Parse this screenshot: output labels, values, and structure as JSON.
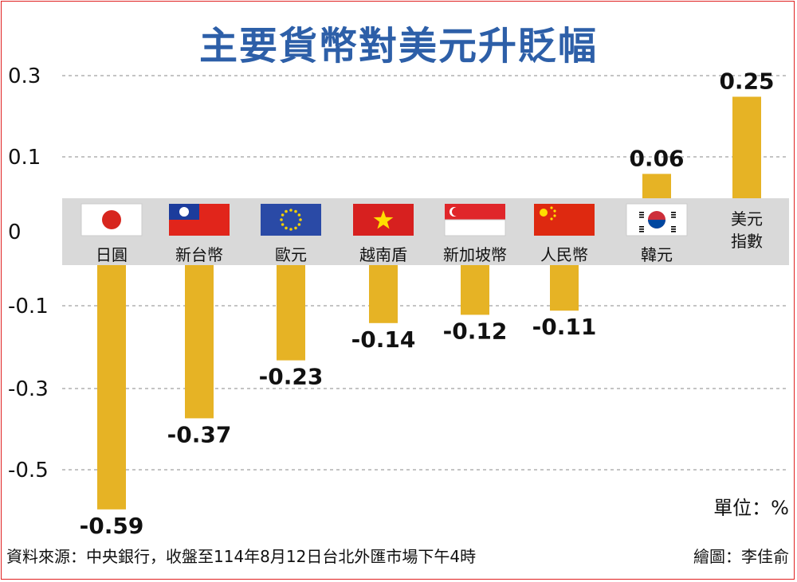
{
  "title": "主要貨幣對美元升貶幅",
  "unit_label": "單位：%",
  "source": "資料來源：中央銀行，收盤至114年8月12日台北外匯市場下午4時",
  "credit": "繪圖：李佳俞",
  "colors": {
    "bar": "#e6b325",
    "band": "#d9d9d9",
    "title": "#2d5fa8",
    "border": "#e02020"
  },
  "chart_data": {
    "type": "bar",
    "title": "主要貨幣對美元升貶幅",
    "unit": "%",
    "yticks": [
      "0.3",
      "0.1",
      "0",
      "-0.1",
      "-0.3",
      "-0.5"
    ],
    "categories": [
      {
        "label": "日圓",
        "flag": "japan-flag"
      },
      {
        "label": "新台幣",
        "flag": "taiwan-flag"
      },
      {
        "label": "歐元",
        "flag": "eu-flag"
      },
      {
        "label": "越南盾",
        "flag": "vietnam-flag"
      },
      {
        "label": "新加坡幣",
        "flag": "singapore-flag"
      },
      {
        "label": "人民幣",
        "flag": "china-flag"
      },
      {
        "label": "韓元",
        "flag": "korea-flag"
      },
      {
        "label": "美元指數",
        "label_lines": [
          "美元",
          "指數"
        ],
        "flag": ""
      }
    ],
    "values": [
      -0.59,
      -0.37,
      -0.23,
      -0.14,
      -0.12,
      -0.11,
      0.06,
      0.25
    ],
    "value_labels": [
      "-0.59",
      "-0.37",
      "-0.23",
      "-0.14",
      "-0.12",
      "-0.11",
      "0.06",
      "0.25"
    ],
    "grid": true,
    "xlabel": "",
    "ylabel": ""
  }
}
